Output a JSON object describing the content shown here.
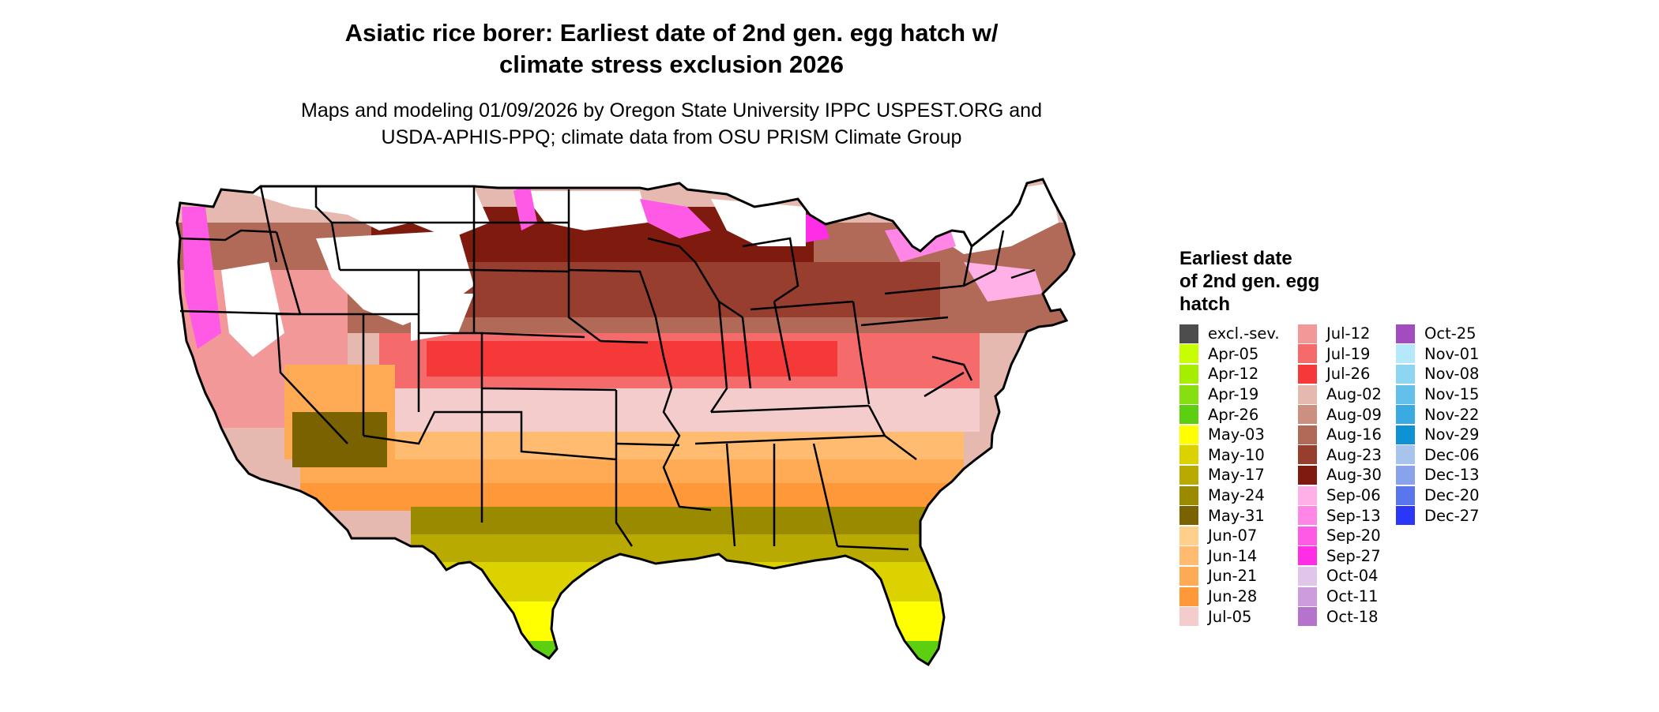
{
  "title": {
    "line1": "Asiatic rice borer: Earliest date of 2nd gen. egg hatch w/",
    "line2": "climate stress exclusion 2026"
  },
  "subtitle": {
    "line1": "Maps and modeling 01/09/2026 by Oregon State University IPPC USPEST.ORG and",
    "line2": "USDA-APHIS-PPQ; climate data from OSU PRISM Climate Group"
  },
  "legend": {
    "title_line1": "Earliest date",
    "title_line2": "of 2nd gen. egg",
    "title_line3": "hatch",
    "columns": [
      [
        {
          "label": "excl.-sev.",
          "color": "#4d4d4d"
        },
        {
          "label": "Apr-05",
          "color": "#c8ff00"
        },
        {
          "label": "Apr-12",
          "color": "#a6ee00"
        },
        {
          "label": "Apr-19",
          "color": "#88df10"
        },
        {
          "label": "Apr-26",
          "color": "#5cd010"
        },
        {
          "label": "May-03",
          "color": "#ffff00"
        },
        {
          "label": "May-10",
          "color": "#dcd200"
        },
        {
          "label": "May-17",
          "color": "#b8aa00"
        },
        {
          "label": "May-24",
          "color": "#998a00"
        },
        {
          "label": "May-31",
          "color": "#7a6200"
        },
        {
          "label": "Jun-07",
          "color": "#ffd08c"
        },
        {
          "label": "Jun-14",
          "color": "#ffbc70"
        },
        {
          "label": "Jun-21",
          "color": "#ffaa55"
        },
        {
          "label": "Jun-28",
          "color": "#ff9838"
        },
        {
          "label": "Jul-05",
          "color": "#f5cccc"
        }
      ],
      [
        {
          "label": "Jul-12",
          "color": "#f29898"
        },
        {
          "label": "Jul-19",
          "color": "#f56a6a"
        },
        {
          "label": "Jul-26",
          "color": "#f53838"
        },
        {
          "label": "Aug-02",
          "color": "#e5b8b0"
        },
        {
          "label": "Aug-09",
          "color": "#cc9080"
        },
        {
          "label": "Aug-16",
          "color": "#b26a58"
        },
        {
          "label": "Aug-23",
          "color": "#983e2e"
        },
        {
          "label": "Aug-30",
          "color": "#7e1b0e"
        },
        {
          "label": "Sep-06",
          "color": "#ffb0e6"
        },
        {
          "label": "Sep-13",
          "color": "#ff86e6"
        },
        {
          "label": "Sep-20",
          "color": "#ff5ae6"
        },
        {
          "label": "Sep-27",
          "color": "#ff2ee6"
        },
        {
          "label": "Oct-04",
          "color": "#e2c6ea"
        },
        {
          "label": "Oct-11",
          "color": "#cc9cdc"
        },
        {
          "label": "Oct-18",
          "color": "#b574cc"
        }
      ],
      [
        {
          "label": "Oct-25",
          "color": "#a24cc0"
        },
        {
          "label": "Nov-01",
          "color": "#b4e8fa"
        },
        {
          "label": "Nov-08",
          "color": "#8cd6f2"
        },
        {
          "label": "Nov-15",
          "color": "#62c0ea"
        },
        {
          "label": "Nov-22",
          "color": "#3aaae2"
        },
        {
          "label": "Nov-29",
          "color": "#0e92d4"
        },
        {
          "label": "Dec-06",
          "color": "#a6c4ec"
        },
        {
          "label": "Dec-13",
          "color": "#88a2ec"
        },
        {
          "label": "Dec-20",
          "color": "#5a76ec"
        },
        {
          "label": "Dec-27",
          "color": "#2a36f8"
        }
      ]
    ]
  },
  "map": {
    "region": "Contiguous United States",
    "outline_color": "#000000"
  }
}
